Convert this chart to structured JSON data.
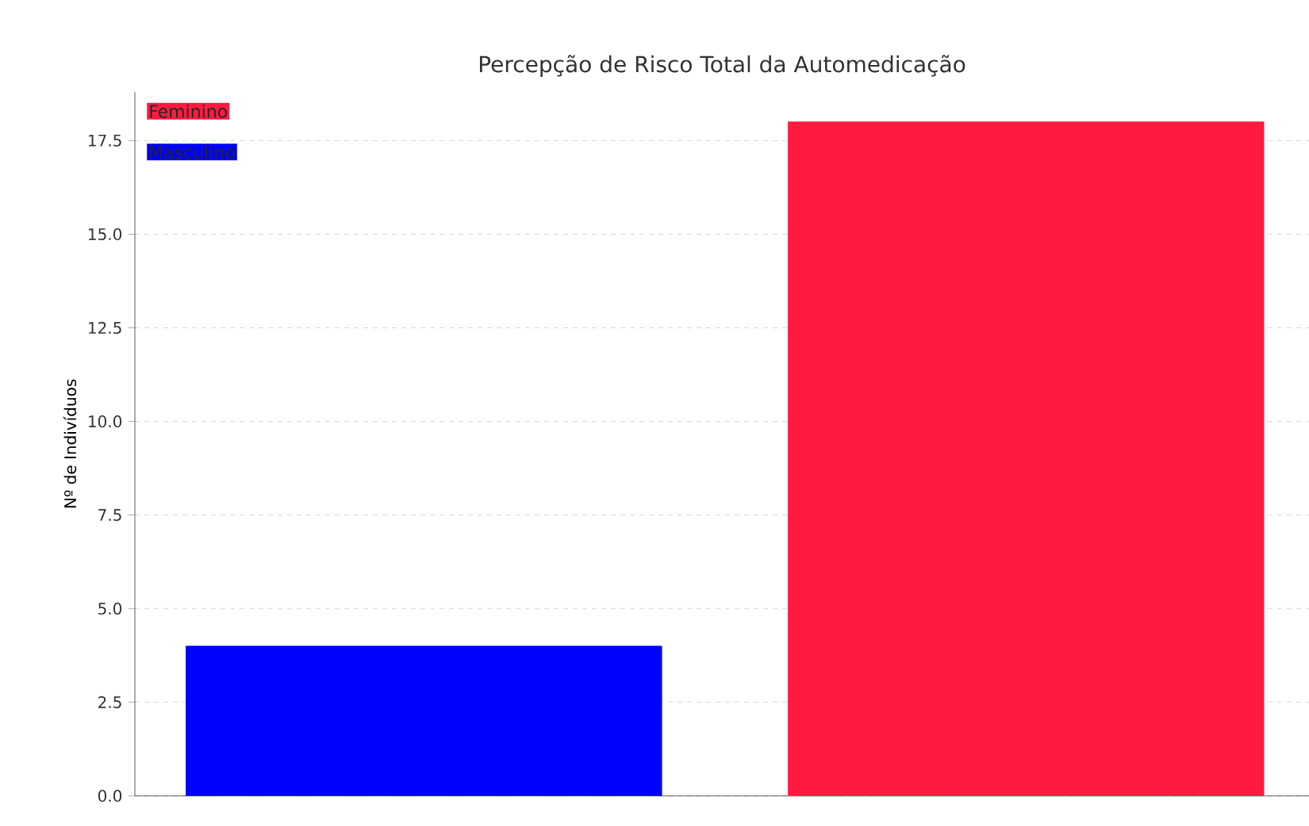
{
  "chart_data": {
    "type": "bar",
    "title": "Percepção de Risco Total da Automedicação",
    "ylabel": "Nº de Indivíduos",
    "categories": [
      null,
      null
    ],
    "series": [
      {
        "name": "Feminino",
        "color": "#ff1a40",
        "values": [
          null,
          18
        ]
      },
      {
        "name": "Masculino",
        "color": "#0000ff",
        "values": [
          4,
          null
        ]
      }
    ],
    "ylim": [
      0,
      18.8
    ],
    "yticks": [
      {
        "value": 0,
        "label": "0.0"
      },
      {
        "value": 2.5,
        "label": "2.5"
      },
      {
        "value": 5,
        "label": "5.0"
      },
      {
        "value": 7.5,
        "label": "7.5"
      },
      {
        "value": 10,
        "label": "10.0"
      },
      {
        "value": 12.5,
        "label": "12.5"
      },
      {
        "value": 15,
        "label": "15.0"
      },
      {
        "value": 17.5,
        "label": "17.5"
      }
    ],
    "grid": "y",
    "legend": "top left"
  }
}
